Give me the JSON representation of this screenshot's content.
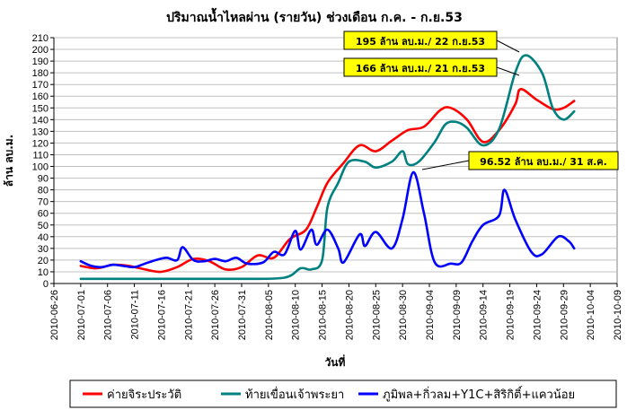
{
  "chart_data": {
    "type": "line",
    "title": "ปริมาณน้ำไหลผ่าน (รายวัน) ช่วงเดือน ก.ค. - ก.ย.53",
    "xlabel": "วันที่",
    "ylabel": "ล้าน ลบ.ม.",
    "ylim": [
      0,
      210
    ],
    "yticks": [
      0,
      10,
      20,
      30,
      40,
      50,
      60,
      70,
      80,
      90,
      100,
      110,
      120,
      130,
      140,
      150,
      160,
      170,
      180,
      190,
      200,
      210
    ],
    "xlim": [
      "2010-06-26",
      "2010-10-09"
    ],
    "xticks": [
      "2010-06-26",
      "2010-07-01",
      "2010-07-06",
      "2010-07-11",
      "2010-07-16",
      "2010-07-21",
      "2010-07-26",
      "2010-07-31",
      "2010-08-05",
      "2010-08-10",
      "2010-08-15",
      "2010-08-20",
      "2010-08-25",
      "2010-08-30",
      "2010-09-04",
      "2010-09-09",
      "2010-09-14",
      "2010-09-19",
      "2010-09-24",
      "2010-09-29",
      "2010-10-04",
      "2010-10-09"
    ],
    "grid": true,
    "legend_position": "bottom",
    "series": [
      {
        "name": "ค่ายจิระประวัติ",
        "color": "#ff0000",
        "points": [
          [
            "2010-07-01",
            15
          ],
          [
            "2010-07-04",
            13
          ],
          [
            "2010-07-07",
            16
          ],
          [
            "2010-07-10",
            15
          ],
          [
            "2010-07-13",
            12
          ],
          [
            "2010-07-16",
            10
          ],
          [
            "2010-07-19",
            14
          ],
          [
            "2010-07-22",
            21
          ],
          [
            "2010-07-25",
            19
          ],
          [
            "2010-07-28",
            12
          ],
          [
            "2010-07-31",
            14
          ],
          [
            "2010-08-03",
            24
          ],
          [
            "2010-08-06",
            22
          ],
          [
            "2010-08-09",
            38
          ],
          [
            "2010-08-12",
            46
          ],
          [
            "2010-08-14",
            65
          ],
          [
            "2010-08-16",
            86
          ],
          [
            "2010-08-19",
            103
          ],
          [
            "2010-08-22",
            118
          ],
          [
            "2010-08-25",
            113
          ],
          [
            "2010-08-28",
            122
          ],
          [
            "2010-08-31",
            131
          ],
          [
            "2010-09-03",
            134
          ],
          [
            "2010-09-06",
            148
          ],
          [
            "2010-09-08",
            150
          ],
          [
            "2010-09-11",
            140
          ],
          [
            "2010-09-14",
            121
          ],
          [
            "2010-09-17",
            131
          ],
          [
            "2010-09-20",
            153
          ],
          [
            "2010-09-21",
            166
          ],
          [
            "2010-09-24",
            157
          ],
          [
            "2010-09-27",
            149
          ],
          [
            "2010-09-29",
            150
          ],
          [
            "2010-10-01",
            156
          ]
        ]
      },
      {
        "name": "ท้ายเขื่อนเจ้าพระยา",
        "color": "#008080",
        "points": [
          [
            "2010-07-01",
            4
          ],
          [
            "2010-07-10",
            4
          ],
          [
            "2010-07-20",
            4
          ],
          [
            "2010-07-31",
            4
          ],
          [
            "2010-08-08",
            5
          ],
          [
            "2010-08-11",
            13
          ],
          [
            "2010-08-13",
            12
          ],
          [
            "2010-08-15",
            20
          ],
          [
            "2010-08-16",
            65
          ],
          [
            "2010-08-18",
            86
          ],
          [
            "2010-08-20",
            104
          ],
          [
            "2010-08-23",
            104
          ],
          [
            "2010-08-25",
            99
          ],
          [
            "2010-08-28",
            104
          ],
          [
            "2010-08-30",
            113
          ],
          [
            "2010-08-31",
            102
          ],
          [
            "2010-09-02",
            104
          ],
          [
            "2010-09-05",
            121
          ],
          [
            "2010-09-07",
            136
          ],
          [
            "2010-09-09",
            138
          ],
          [
            "2010-09-11",
            133
          ],
          [
            "2010-09-14",
            118
          ],
          [
            "2010-09-17",
            132
          ],
          [
            "2010-09-20",
            180
          ],
          [
            "2010-09-22",
            195
          ],
          [
            "2010-09-25",
            180
          ],
          [
            "2010-09-27",
            150
          ],
          [
            "2010-09-29",
            140
          ],
          [
            "2010-10-01",
            147
          ]
        ]
      },
      {
        "name": "ภูมิพล+กิ่วลม+Y1C+สิริกิติ์+แควน้อย",
        "color": "#0000ff",
        "points": [
          [
            "2010-07-01",
            19
          ],
          [
            "2010-07-03",
            15
          ],
          [
            "2010-07-05",
            14
          ],
          [
            "2010-07-07",
            16
          ],
          [
            "2010-07-09",
            15
          ],
          [
            "2010-07-11",
            14
          ],
          [
            "2010-07-13",
            17
          ],
          [
            "2010-07-15",
            20
          ],
          [
            "2010-07-17",
            22
          ],
          [
            "2010-07-19",
            20
          ],
          [
            "2010-07-20",
            31
          ],
          [
            "2010-07-22",
            20
          ],
          [
            "2010-07-24",
            19
          ],
          [
            "2010-07-26",
            21
          ],
          [
            "2010-07-28",
            19
          ],
          [
            "2010-07-30",
            22
          ],
          [
            "2010-08-01",
            17
          ],
          [
            "2010-08-04",
            18
          ],
          [
            "2010-08-06",
            27
          ],
          [
            "2010-08-08",
            25
          ],
          [
            "2010-08-10",
            45
          ],
          [
            "2010-08-11",
            29
          ],
          [
            "2010-08-13",
            46
          ],
          [
            "2010-08-14",
            33
          ],
          [
            "2010-08-16",
            46
          ],
          [
            "2010-08-18",
            30
          ],
          [
            "2010-08-19",
            18
          ],
          [
            "2010-08-22",
            42
          ],
          [
            "2010-08-23",
            32
          ],
          [
            "2010-08-25",
            44
          ],
          [
            "2010-08-28",
            30
          ],
          [
            "2010-08-30",
            55
          ],
          [
            "2010-09-01",
            95
          ],
          [
            "2010-09-03",
            60
          ],
          [
            "2010-09-05",
            18
          ],
          [
            "2010-09-08",
            17
          ],
          [
            "2010-09-10",
            18
          ],
          [
            "2010-09-12",
            36
          ],
          [
            "2010-09-14",
            50
          ],
          [
            "2010-09-17",
            58
          ],
          [
            "2010-09-18",
            80
          ],
          [
            "2010-09-20",
            55
          ],
          [
            "2010-09-23",
            27
          ],
          [
            "2010-09-25",
            25
          ],
          [
            "2010-09-28",
            40
          ],
          [
            "2010-09-30",
            36
          ],
          [
            "2010-10-01",
            30
          ]
        ]
      }
    ],
    "annotations": [
      {
        "text": "195 ล้าน ลบ.ม./ 22 ก.ย.53",
        "x": "2010-09-22",
        "y": 195
      },
      {
        "text": "166 ล้าน ลบ.ม./ 21 ก.ย.53",
        "x": "2010-09-21",
        "y": 166
      },
      {
        "text": "96.52 ล้าน ลบ.ม./ 31 ส.ค.",
        "x": "2010-08-31",
        "y": 96.52
      }
    ]
  }
}
